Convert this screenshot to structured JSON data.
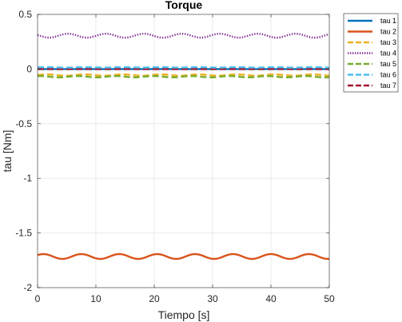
{
  "chart_data": {
    "type": "line",
    "title": "Torque",
    "xlabel": "Tiempo [s]",
    "ylabel": "tau [Nm]",
    "xlim": [
      0,
      50
    ],
    "ylim": [
      -2,
      0.5
    ],
    "xticks": [
      0,
      10,
      20,
      30,
      40,
      50
    ],
    "yticks": [
      0.5,
      0,
      -0.5,
      -1,
      -1.5,
      -2
    ],
    "ytick_labels": [
      "0.5",
      "0",
      "-0.5",
      "-1",
      "-1.5",
      "-2"
    ],
    "grid": true,
    "legend_position": "outside-top-right",
    "series": [
      {
        "name": "tau 1",
        "color": "#0072BD",
        "style": "solid",
        "base": 0.0,
        "amp": 0.0,
        "period": 6.5,
        "phase": 0
      },
      {
        "name": "tau 2",
        "color": "#D95319",
        "style": "solid",
        "base": -1.715,
        "amp": 0.022,
        "period": 6.5,
        "phase": 0.6
      },
      {
        "name": "tau 3",
        "color": "#EDB120",
        "style": "dashed",
        "base": -0.055,
        "amp": 0.006,
        "period": 6.5,
        "phase": 0
      },
      {
        "name": "tau 4",
        "color": "#7E2F8E",
        "style": "dotted",
        "base": 0.305,
        "amp": 0.018,
        "period": 6.5,
        "phase": 2.8
      },
      {
        "name": "tau 5",
        "color": "#77AC30",
        "style": "dashed",
        "base": -0.07,
        "amp": 0.006,
        "period": 6.5,
        "phase": 1.2
      },
      {
        "name": "tau 6",
        "color": "#4DBEEE",
        "style": "dashed",
        "base": 0.015,
        "amp": 0.002,
        "period": 6.5,
        "phase": 0
      },
      {
        "name": "tau 7",
        "color": "#A2142F",
        "style": "dashed",
        "base": 0.0,
        "amp": 0.0,
        "period": 6.5,
        "phase": 0
      }
    ]
  }
}
